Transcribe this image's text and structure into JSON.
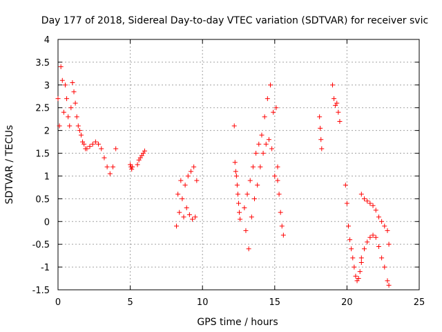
{
  "chart_data": {
    "type": "scatter",
    "title": "Day 177 of 2018, Sidereal Day-to-day VTEC variation (SDTVAR) for receiver svic",
    "xlabel": "GPS time / hours",
    "ylabel": "SDTVAR / TECUs",
    "xlim": [
      0,
      25
    ],
    "ylim": [
      -1.5,
      4
    ],
    "xticks": [
      0,
      5,
      10,
      15,
      20,
      25
    ],
    "yticks": [
      -1.5,
      -1,
      -0.5,
      0,
      0.5,
      1,
      1.5,
      2,
      2.5,
      3,
      3.5,
      4
    ],
    "grid": true,
    "marker": "+",
    "color": "#ff0000",
    "series": [
      {
        "name": "SDTVAR",
        "segments": [
          {
            "x": [
              0.0,
              0.1,
              0.2,
              0.3,
              0.4,
              0.5,
              0.6,
              0.7,
              0.8,
              0.9,
              1.0,
              1.1,
              1.2,
              1.3,
              1.4,
              1.5,
              1.6,
              1.7,
              1.8,
              1.9,
              2.0,
              2.2,
              2.4,
              2.6,
              2.8,
              3.0,
              3.2,
              3.4,
              3.6,
              3.8,
              4.0
            ],
            "y": [
              2.7,
              2.1,
              3.4,
              3.1,
              2.4,
              3.0,
              2.7,
              2.3,
              2.1,
              2.5,
              3.05,
              2.85,
              2.6,
              2.3,
              2.1,
              2.0,
              1.9,
              1.75,
              1.7,
              1.6,
              1.6,
              1.65,
              1.7,
              1.75,
              1.7,
              1.6,
              1.4,
              1.2,
              1.05,
              1.2,
              1.6
            ]
          },
          {
            "x": [
              5.0,
              5.05,
              5.1,
              5.15
            ],
            "y": [
              1.25,
              1.2,
              1.15,
              1.2
            ]
          },
          {
            "x": [
              5.5,
              5.6,
              5.7,
              5.8,
              5.9,
              6.0
            ],
            "y": [
              1.25,
              1.35,
              1.4,
              1.45,
              1.5,
              1.55
            ]
          },
          {
            "x": [
              8.2,
              8.3,
              8.4,
              8.5,
              8.6,
              8.7,
              8.8,
              8.9,
              9.0,
              9.1,
              9.2,
              9.3,
              9.4,
              9.5,
              9.6
            ],
            "y": [
              -0.1,
              0.6,
              0.2,
              0.9,
              0.5,
              0.1,
              0.8,
              0.3,
              1.0,
              0.15,
              1.1,
              0.05,
              1.2,
              0.1,
              0.9
            ]
          },
          {
            "x": [
              12.2,
              12.25,
              12.3,
              12.35,
              12.4,
              12.45,
              12.5,
              12.55,
              12.6
            ],
            "y": [
              2.1,
              1.3,
              1.1,
              1.0,
              0.8,
              0.6,
              0.4,
              0.2,
              0.05
            ]
          },
          {
            "x": [
              12.9,
              13.0,
              13.1,
              13.2,
              13.3,
              13.4,
              13.5,
              13.6,
              13.7,
              13.8,
              13.9,
              14.0,
              14.1,
              14.2,
              14.3,
              14.4,
              14.5,
              14.6,
              14.7,
              14.8,
              14.9,
              15.0,
              15.1,
              15.2
            ],
            "y": [
              0.3,
              -0.2,
              0.6,
              -0.6,
              0.9,
              0.1,
              1.2,
              0.5,
              1.5,
              0.8,
              1.7,
              1.2,
              1.9,
              1.5,
              2.3,
              1.7,
              2.7,
              1.8,
              3.0,
              1.6,
              2.4,
              1.0,
              2.5,
              1.2
            ]
          },
          {
            "x": [
              15.2,
              15.3,
              15.4,
              15.5,
              15.6
            ],
            "y": [
              0.9,
              0.6,
              0.2,
              -0.1,
              -0.3
            ]
          },
          {
            "x": [
              18.1,
              18.15,
              18.2,
              18.25
            ],
            "y": [
              2.3,
              2.05,
              1.8,
              1.6
            ]
          },
          {
            "x": [
              19.0,
              19.1,
              19.2,
              19.3,
              19.4,
              19.5
            ],
            "y": [
              3.0,
              2.7,
              2.55,
              2.6,
              2.4,
              2.2
            ]
          },
          {
            "x": [
              19.9,
              20.0,
              20.1,
              20.2,
              20.3,
              20.4,
              20.5,
              20.6,
              20.7,
              20.8,
              20.9,
              21.0
            ],
            "y": [
              0.8,
              0.4,
              -0.1,
              -0.4,
              -0.6,
              -0.8,
              -1.0,
              -1.2,
              -1.3,
              -1.25,
              -1.1,
              -0.9
            ]
          },
          {
            "x": [
              21.0,
              21.2,
              21.4,
              21.6,
              21.8,
              22.0,
              22.2,
              22.4,
              22.6,
              22.8,
              22.9
            ],
            "y": [
              -0.8,
              -0.6,
              -0.45,
              -0.35,
              -0.3,
              -0.35,
              -0.55,
              -0.8,
              -1.0,
              -1.3,
              -1.4
            ]
          },
          {
            "x": [
              21.0,
              21.2,
              21.4,
              21.6,
              21.8,
              22.0,
              22.2,
              22.4,
              22.6,
              22.8,
              22.9
            ],
            "y": [
              0.6,
              0.5,
              0.45,
              0.4,
              0.35,
              0.25,
              0.1,
              0.0,
              -0.1,
              -0.2,
              -0.5
            ]
          }
        ]
      }
    ]
  }
}
